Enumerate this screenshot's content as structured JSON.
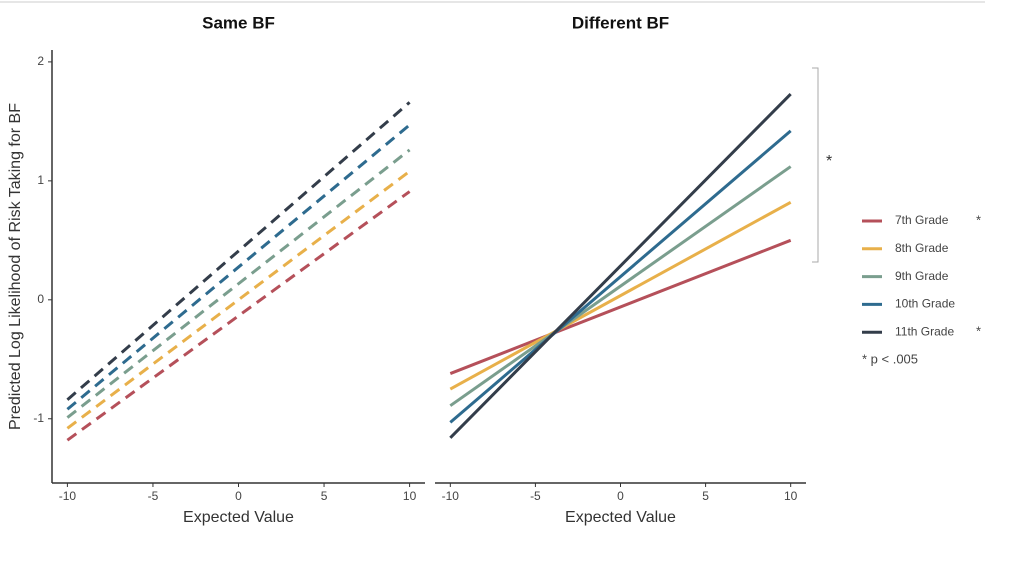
{
  "chart_data": [
    {
      "type": "line",
      "title": "Same BF",
      "x_label": "Expected Value",
      "y_label": "Predicted Log Likelihood of Risk Taking for BF",
      "linestyle": "dashed",
      "x": [
        -10,
        10
      ],
      "xlim": [
        -10.9,
        10.9
      ],
      "xticks": [
        -10,
        -5,
        0,
        5,
        10
      ],
      "ylim": [
        -1.54,
        2.1
      ],
      "yticks": [
        -1,
        0,
        1,
        2
      ],
      "series": [
        {
          "name": "7th Grade",
          "color": "#b5505a",
          "values": [
            -1.18,
            0.91
          ]
        },
        {
          "name": "8th Grade",
          "color": "#e8b04a",
          "values": [
            -1.08,
            1.08
          ]
        },
        {
          "name": "9th Grade",
          "color": "#7a9e8e",
          "values": [
            -0.99,
            1.26
          ]
        },
        {
          "name": "10th Grade",
          "color": "#2e6b8f",
          "values": [
            -0.92,
            1.47
          ]
        },
        {
          "name": "11th Grade",
          "color": "#333d4a",
          "values": [
            -0.84,
            1.66
          ]
        }
      ]
    },
    {
      "type": "line",
      "title": "Different BF",
      "x_label": "Expected Value",
      "linestyle": "solid",
      "x": [
        -10,
        10
      ],
      "xlim": [
        -10.9,
        10.9
      ],
      "xticks": [
        -10,
        -5,
        0,
        5,
        10
      ],
      "ylim": [
        -1.54,
        2.1
      ],
      "series": [
        {
          "name": "7th Grade",
          "color": "#b5505a",
          "values": [
            -0.62,
            0.5
          ],
          "note": "*"
        },
        {
          "name": "8th Grade",
          "color": "#e8b04a",
          "values": [
            -0.75,
            0.82
          ]
        },
        {
          "name": "9th Grade",
          "color": "#7a9e8e",
          "values": [
            -0.89,
            1.12
          ]
        },
        {
          "name": "10th Grade",
          "color": "#2e6b8f",
          "values": [
            -1.03,
            1.42
          ]
        },
        {
          "name": "11th Grade",
          "color": "#333d4a",
          "values": [
            -1.16,
            1.73
          ],
          "note": "*"
        }
      ],
      "bracket_label": "*",
      "footnote": "* p < .005"
    }
  ]
}
